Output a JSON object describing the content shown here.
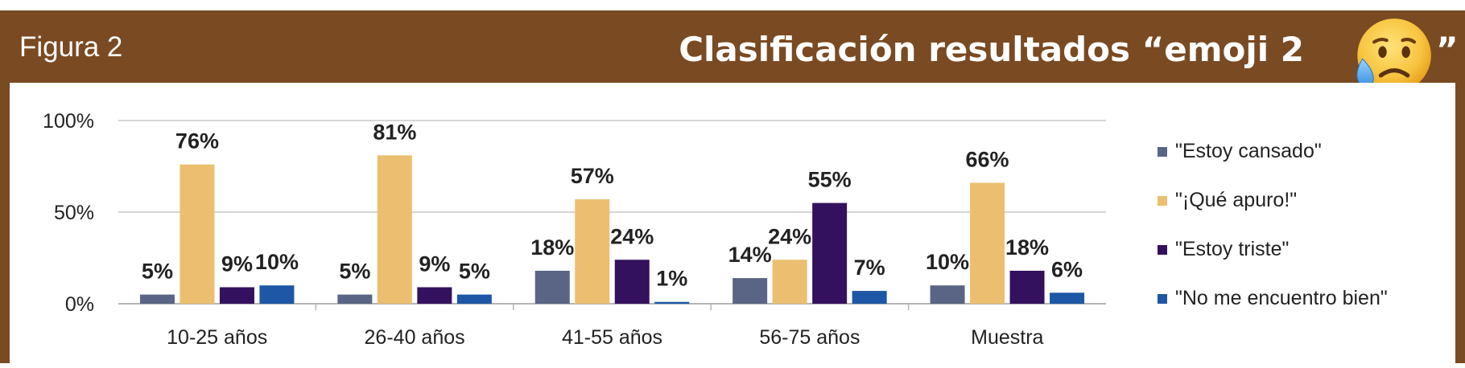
{
  "header": {
    "figure_label": "Figura 2",
    "title": "Clasificación resultados “emoji 2",
    "title_close": "”",
    "emoji_icon": "sad-relieved-face-emoji"
  },
  "colors": {
    "frame": "#7a4a22",
    "series": [
      "#5a6585",
      "#ebbf6f",
      "#33115e",
      "#1d57a5"
    ],
    "grid": "#c8c8c8",
    "text": "#222222"
  },
  "chart_data": {
    "type": "bar",
    "categories": [
      "10-25 años",
      "26-40 años",
      "41-55 años",
      "56-75 años",
      "Muestra"
    ],
    "series": [
      {
        "name": "\"Estoy cansado\"",
        "values": [
          5,
          5,
          18,
          14,
          10
        ],
        "labels": [
          "5%",
          "5%",
          "18%",
          "14%",
          "10%"
        ]
      },
      {
        "name": "\"¡Qué apuro!\"",
        "values": [
          76,
          81,
          57,
          24,
          66
        ],
        "labels": [
          "76%",
          "81%",
          "57%",
          "24%",
          "66%"
        ]
      },
      {
        "name": "\"Estoy triste\"",
        "values": [
          9,
          9,
          24,
          55,
          18
        ],
        "labels": [
          "9%",
          "9%",
          "24%",
          "55%",
          "18%"
        ]
      },
      {
        "name": "\"No me encuentro bien\"",
        "values": [
          10,
          5,
          1,
          7,
          6
        ],
        "labels": [
          "10%",
          "5%",
          "1%",
          "7%",
          "6%"
        ]
      }
    ],
    "y_ticks": [
      "0%",
      "50%",
      "100%"
    ],
    "ylim": [
      0,
      100
    ],
    "grid": true,
    "legend_position": "right"
  }
}
